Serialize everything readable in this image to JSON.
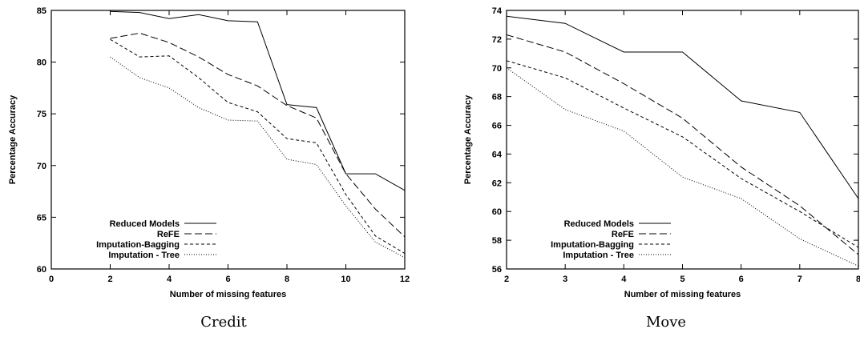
{
  "chart_data": [
    {
      "type": "line",
      "caption": "Credit",
      "xlabel": "Number of missing features",
      "ylabel": "Percentage Accuracy",
      "xlim": [
        0,
        12
      ],
      "ylim": [
        60,
        85
      ],
      "xticks": [
        0,
        2,
        4,
        6,
        8,
        10,
        12
      ],
      "yticks": [
        60,
        65,
        70,
        75,
        80,
        85
      ],
      "grid": false,
      "legend_position": "bottom-left",
      "x": [
        2,
        3,
        4,
        5,
        6,
        7,
        8,
        9,
        10,
        11,
        12
      ],
      "series": [
        {
          "name": "Reduced Models",
          "dash": "solid",
          "values": [
            84.9,
            84.8,
            84.2,
            84.6,
            84.0,
            83.9,
            75.9,
            75.6,
            69.2,
            69.2,
            67.6
          ]
        },
        {
          "name": "ReFE",
          "dash": "dashed",
          "values": [
            82.3,
            82.8,
            81.9,
            80.5,
            78.8,
            77.7,
            75.8,
            74.6,
            69.2,
            65.8,
            63.1
          ]
        },
        {
          "name": "Imputation-Bagging",
          "dash": "short-dashed",
          "values": [
            82.2,
            80.5,
            80.6,
            78.5,
            76.1,
            75.2,
            72.6,
            72.2,
            67.2,
            63.2,
            61.5
          ]
        },
        {
          "name": "Imputation - Tree",
          "dash": "dotted",
          "values": [
            80.5,
            78.5,
            77.5,
            75.6,
            74.4,
            74.3,
            70.6,
            70.1,
            66.1,
            62.6,
            61.1
          ]
        }
      ]
    },
    {
      "type": "line",
      "caption": "Move",
      "xlabel": "Number of missing features",
      "ylabel": "Percentage Accuracy",
      "xlim": [
        2,
        8
      ],
      "ylim": [
        56,
        74
      ],
      "xticks": [
        2,
        3,
        4,
        5,
        6,
        7,
        8
      ],
      "yticks": [
        56,
        58,
        60,
        62,
        64,
        66,
        68,
        70,
        72,
        74
      ],
      "grid": false,
      "legend_position": "bottom-left",
      "x": [
        2,
        3,
        4,
        5,
        6,
        7,
        8
      ],
      "series": [
        {
          "name": "Reduced Models",
          "dash": "solid",
          "values": [
            73.6,
            73.1,
            71.1,
            71.1,
            67.7,
            66.9,
            60.9
          ]
        },
        {
          "name": "ReFE",
          "dash": "dashed",
          "values": [
            72.3,
            71.1,
            68.9,
            66.5,
            63.1,
            60.4,
            57.0
          ]
        },
        {
          "name": "Imputation-Bagging",
          "dash": "short-dashed",
          "values": [
            70.5,
            69.3,
            67.2,
            65.2,
            62.3,
            60.0,
            57.5
          ]
        },
        {
          "name": "Imputation - Tree",
          "dash": "dotted",
          "values": [
            70.0,
            67.1,
            65.6,
            62.4,
            60.9,
            58.1,
            56.2
          ]
        }
      ]
    }
  ]
}
